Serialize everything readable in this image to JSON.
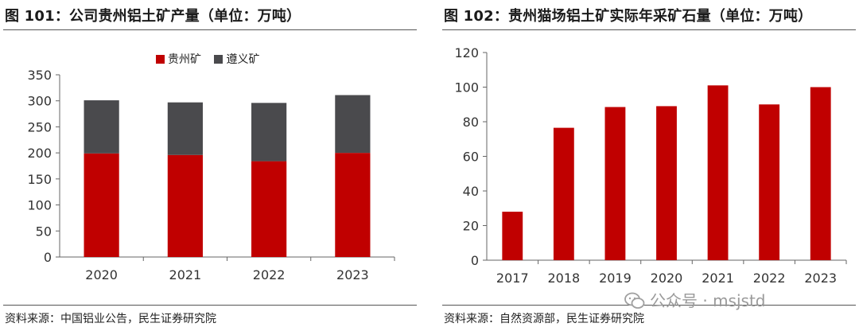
{
  "figures": [
    {
      "title": "图 101：公司贵州铝土矿产量（单位：万吨）",
      "source": "资料来源：中国铝业公告，民生证券研究院"
    },
    {
      "title": "图 102：贵州猫场铝土矿实际年采矿石量（单位：万吨）",
      "source": "资料来源：自然资源部，民生证券研究院"
    }
  ],
  "watermark": "公众号 · msjstd",
  "chart_data": [
    {
      "type": "bar",
      "stacked": true,
      "title": "公司贵州铝土矿产量（单位：万吨）",
      "categories": [
        "2020",
        "2021",
        "2022",
        "2023"
      ],
      "series": [
        {
          "name": "贵州矿",
          "color": "#c00000",
          "values": [
            199,
            196,
            184,
            200
          ]
        },
        {
          "name": "遵义矿",
          "color": "#4a4a4d",
          "values": [
            102,
            101,
            112,
            111
          ]
        }
      ],
      "ylim": [
        0,
        350
      ],
      "yticks": [
        0,
        50,
        100,
        150,
        200,
        250,
        300,
        350
      ],
      "legend": "top"
    },
    {
      "type": "bar",
      "title": "贵州猫场铝土矿实际年采矿石量（单位：万吨）",
      "categories": [
        "2017",
        "2018",
        "2019",
        "2020",
        "2021",
        "2022",
        "2023"
      ],
      "series": [
        {
          "name": "实际年采矿石量",
          "color": "#c00000",
          "values": [
            28,
            76.5,
            88.5,
            89,
            101,
            90,
            100
          ]
        }
      ],
      "ylim": [
        0,
        120
      ],
      "yticks": [
        0,
        20,
        40,
        60,
        80,
        100,
        120
      ]
    }
  ]
}
